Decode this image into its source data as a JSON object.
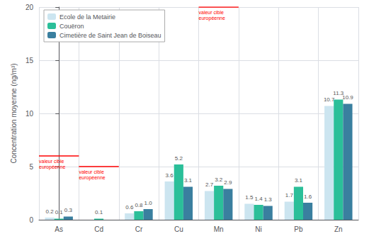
{
  "chart_data": {
    "type": "bar",
    "categories": [
      "As",
      "Cd",
      "Cr",
      "Cu",
      "Mn",
      "Ni",
      "Pb",
      "Zn"
    ],
    "series": [
      {
        "name": "Ecole de la Metairie",
        "color": "#cce5f0",
        "values": [
          0.2,
          0.0,
          0.6,
          3.6,
          2.7,
          1.5,
          1.7,
          10.7
        ],
        "value_labels": [
          "0.2",
          null,
          "0.6",
          "3.6",
          "2.7",
          "1.5",
          "1.7",
          "10.7"
        ]
      },
      {
        "name": "Couëron",
        "color": "#2bbf99",
        "values": [
          0.1,
          0.1,
          0.8,
          5.2,
          3.2,
          1.4,
          3.1,
          11.3
        ],
        "value_labels": [
          "0.1",
          "0.1",
          "0.8",
          "5.2",
          "3.2",
          "1.4",
          "3.1",
          "11.3"
        ]
      },
      {
        "name": "Cimetière de Saint Jean de Boiseau",
        "color": "#3a7f9f",
        "values": [
          0.3,
          0.0,
          1.0,
          3.1,
          2.9,
          1.3,
          1.6,
          10.9
        ],
        "value_labels": [
          "0.3",
          null,
          "1.0",
          "3.1",
          "2.9",
          "1.3",
          "1.6",
          "10.9"
        ]
      }
    ],
    "ylabel": "Concentration moyenne (ng/m³)",
    "ylim": [
      0,
      20
    ],
    "yticks": [
      0,
      5,
      10,
      15,
      20
    ],
    "grid": true,
    "legend": "upper left",
    "data_labels": true,
    "annotations": [
      {
        "text": "valeur cible\neuropéenne",
        "x": "As",
        "y": 6.0,
        "color": "red"
      },
      {
        "text": "valeur cible\neuropéenne",
        "x": "Cd",
        "y": 5.0,
        "color": "red"
      },
      {
        "text": "valeur cible\neuropéenne",
        "x": "Mn",
        "y": 20.0,
        "color": "red"
      }
    ]
  }
}
